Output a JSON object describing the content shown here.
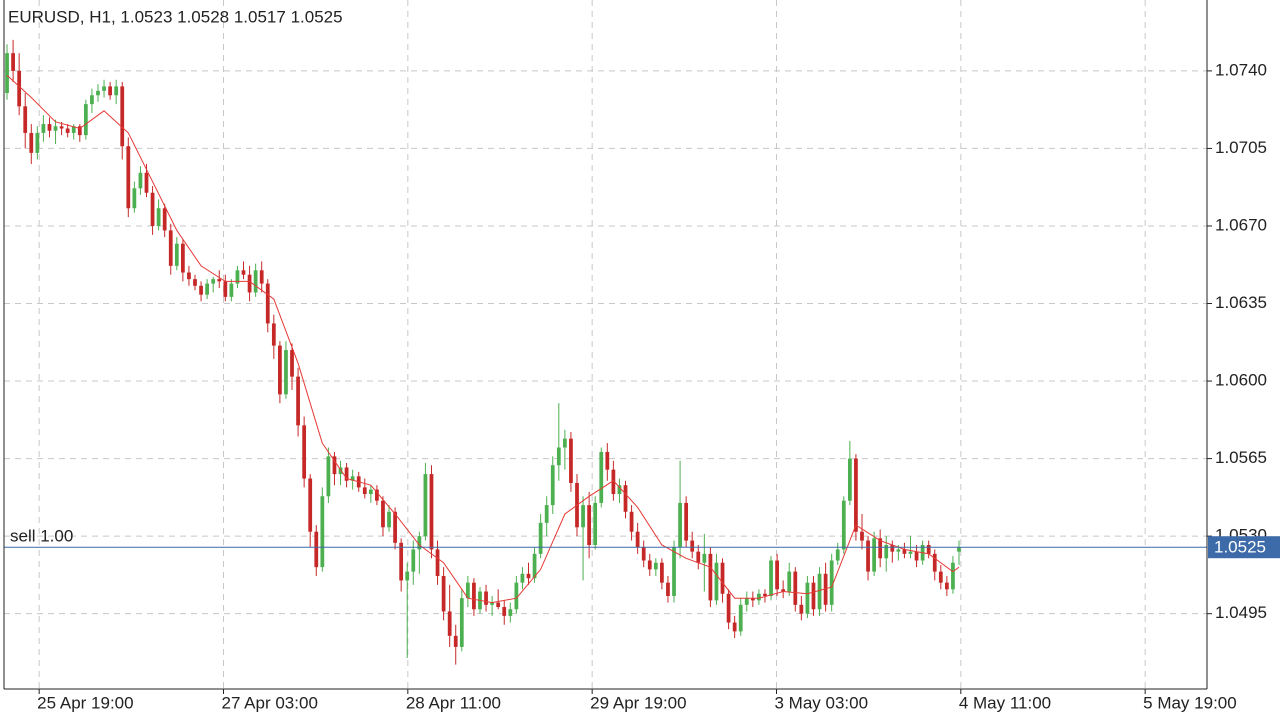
{
  "chart_data": {
    "type": "candlestick",
    "title": "EURUSD, H1, 1.0523 1.0528 1.0517 1.0525",
    "up_color": "#4caf50",
    "down_color": "#c62828",
    "ma_color": "#e53935",
    "price_line_color": "#3d6aa8",
    "ylim": [
      1.0461,
      1.0772
    ],
    "yticks": [
      {
        "value": 1.074,
        "label": "1.0740"
      },
      {
        "value": 1.0705,
        "label": "1.0705"
      },
      {
        "value": 1.067,
        "label": "1.0670"
      },
      {
        "value": 1.0635,
        "label": "1.0635"
      },
      {
        "value": 1.06,
        "label": "1.0600"
      },
      {
        "value": 1.0565,
        "label": "1.0565"
      },
      {
        "value": 1.053,
        "label": "1.0530"
      },
      {
        "value": 1.0495,
        "label": "1.0495"
      }
    ],
    "xlim": [
      -0.5,
      197.9
    ],
    "xticks": [
      {
        "value": 5.3,
        "label": "25 Apr 19:00"
      },
      {
        "value": 35.7,
        "label": "27 Apr 03:00"
      },
      {
        "value": 66.1,
        "label": "28 Apr 11:00"
      },
      {
        "value": 96.5,
        "label": "29 Apr 19:00"
      },
      {
        "value": 126.9,
        "label": "3 May 03:00"
      },
      {
        "value": 157.3,
        "label": "4 May 11:00"
      },
      {
        "value": 187.7,
        "label": "5 May 19:00"
      }
    ],
    "grid": true,
    "price_line": 1.0525,
    "order_label": "sell 1.00",
    "ohlc": [
      [
        1.073,
        1.0752,
        1.0727,
        1.0748
      ],
      [
        1.0748,
        1.0754,
        1.0735,
        1.074
      ],
      [
        1.074,
        1.0748,
        1.072,
        1.0724
      ],
      [
        1.0724,
        1.073,
        1.0705,
        1.0712
      ],
      [
        1.0712,
        1.0716,
        1.0698,
        1.0703
      ],
      [
        1.0703,
        1.0715,
        1.07,
        1.0712
      ],
      [
        1.0712,
        1.072,
        1.0708,
        1.0716
      ],
      [
        1.0716,
        1.0719,
        1.071,
        1.0713
      ],
      [
        1.0713,
        1.0718,
        1.0707,
        1.0715
      ],
      [
        1.0715,
        1.0717,
        1.0711,
        1.0714
      ],
      [
        1.0714,
        1.0716,
        1.071,
        1.0712
      ],
      [
        1.0712,
        1.0716,
        1.0709,
        1.0715
      ],
      [
        1.0715,
        1.0716,
        1.0708,
        1.0711
      ],
      [
        1.0711,
        1.0727,
        1.0709,
        1.0725
      ],
      [
        1.0725,
        1.0732,
        1.0721,
        1.0729
      ],
      [
        1.0729,
        1.0734,
        1.0726,
        1.0731
      ],
      [
        1.0731,
        1.0736,
        1.0728,
        1.0733
      ],
      [
        1.0733,
        1.0735,
        1.0727,
        1.0729
      ],
      [
        1.0729,
        1.0736,
        1.0725,
        1.0733
      ],
      [
        1.0733,
        1.0735,
        1.07,
        1.0706
      ],
      [
        1.0706,
        1.071,
        1.0674,
        1.0678
      ],
      [
        1.0678,
        1.069,
        1.0676,
        1.0687
      ],
      [
        1.0687,
        1.0697,
        1.0684,
        1.0694
      ],
      [
        1.0694,
        1.0698,
        1.0683,
        1.0685
      ],
      [
        1.0685,
        1.0688,
        1.0666,
        1.067
      ],
      [
        1.067,
        1.0682,
        1.0668,
        1.0678
      ],
      [
        1.0678,
        1.068,
        1.0665,
        1.0668
      ],
      [
        1.0668,
        1.0671,
        1.0648,
        1.0652
      ],
      [
        1.0652,
        1.0665,
        1.065,
        1.0662
      ],
      [
        1.0662,
        1.0664,
        1.0645,
        1.0649
      ],
      [
        1.0649,
        1.0652,
        1.0643,
        1.0646
      ],
      [
        1.0646,
        1.0648,
        1.0641,
        1.0643
      ],
      [
        1.0643,
        1.0645,
        1.0636,
        1.0639
      ],
      [
        1.0639,
        1.0646,
        1.0637,
        1.0644
      ],
      [
        1.0644,
        1.0647,
        1.064,
        1.0646
      ],
      [
        1.0646,
        1.065,
        1.0642,
        1.0645
      ],
      [
        1.0645,
        1.0648,
        1.0636,
        1.0638
      ],
      [
        1.0638,
        1.0646,
        1.0636,
        1.0644
      ],
      [
        1.0644,
        1.0652,
        1.0642,
        1.065
      ],
      [
        1.065,
        1.0654,
        1.0646,
        1.0648
      ],
      [
        1.0648,
        1.0652,
        1.0636,
        1.064
      ],
      [
        1.064,
        1.0653,
        1.0638,
        1.065
      ],
      [
        1.065,
        1.0654,
        1.064,
        1.0644
      ],
      [
        1.0644,
        1.0646,
        1.0622,
        1.0626
      ],
      [
        1.0626,
        1.063,
        1.061,
        1.0616
      ],
      [
        1.0616,
        1.0618,
        1.059,
        1.0594
      ],
      [
        1.0594,
        1.0618,
        1.0592,
        1.0614
      ],
      [
        1.0614,
        1.0617,
        1.0596,
        1.0602
      ],
      [
        1.0602,
        1.0606,
        1.0575,
        1.058
      ],
      [
        1.058,
        1.0584,
        1.0552,
        1.0556
      ],
      [
        1.0556,
        1.0558,
        1.0525,
        1.0532
      ],
      [
        1.0532,
        1.0535,
        1.0512,
        1.0516
      ],
      [
        1.0516,
        1.0552,
        1.0514,
        1.0548
      ],
      [
        1.0548,
        1.057,
        1.0545,
        1.0566
      ],
      [
        1.0566,
        1.0568,
        1.0553,
        1.0558
      ],
      [
        1.0558,
        1.0564,
        1.0553,
        1.0561
      ],
      [
        1.0561,
        1.0563,
        1.0552,
        1.0555
      ],
      [
        1.0555,
        1.056,
        1.0551,
        1.0557
      ],
      [
        1.0557,
        1.0559,
        1.055,
        1.0552
      ],
      [
        1.0552,
        1.0556,
        1.0547,
        1.0549
      ],
      [
        1.0549,
        1.0553,
        1.0545,
        1.0551
      ],
      [
        1.0551,
        1.0553,
        1.0544,
        1.0546
      ],
      [
        1.0546,
        1.0548,
        1.053,
        1.0534
      ],
      [
        1.0534,
        1.0544,
        1.0532,
        1.0541
      ],
      [
        1.0541,
        1.0543,
        1.0524,
        1.0527
      ],
      [
        1.0527,
        1.0529,
        1.0505,
        1.051
      ],
      [
        1.051,
        1.0518,
        1.0475,
        1.0514
      ],
      [
        1.0514,
        1.0528,
        1.0508,
        1.0524
      ],
      [
        1.0524,
        1.0532,
        1.0513,
        1.053
      ],
      [
        1.053,
        1.0563,
        1.0528,
        1.0558
      ],
      [
        1.0558,
        1.0562,
        1.052,
        1.0524
      ],
      [
        1.0524,
        1.0528,
        1.0508,
        1.0512
      ],
      [
        1.0512,
        1.0516,
        1.0492,
        1.0496
      ],
      [
        1.0496,
        1.0508,
        1.048,
        1.0485
      ],
      [
        1.0485,
        1.049,
        1.0472,
        1.048
      ],
      [
        1.048,
        1.0506,
        1.0478,
        1.0502
      ],
      [
        1.0502,
        1.0512,
        1.0498,
        1.0509
      ],
      [
        1.0509,
        1.0511,
        1.0494,
        1.0497
      ],
      [
        1.0497,
        1.0507,
        1.0495,
        1.0505
      ],
      [
        1.0505,
        1.0508,
        1.0496,
        1.0499
      ],
      [
        1.0499,
        1.0503,
        1.0494,
        1.05
      ],
      [
        1.05,
        1.0506,
        1.0497,
        1.0498
      ],
      [
        1.0498,
        1.0501,
        1.049,
        1.0494
      ],
      [
        1.0494,
        1.05,
        1.0491,
        1.0497
      ],
      [
        1.0497,
        1.0512,
        1.0495,
        1.0509
      ],
      [
        1.0509,
        1.0516,
        1.0506,
        1.0513
      ],
      [
        1.0513,
        1.0518,
        1.0508,
        1.0511
      ],
      [
        1.0511,
        1.0525,
        1.0509,
        1.0522
      ],
      [
        1.0522,
        1.054,
        1.052,
        1.0536
      ],
      [
        1.0536,
        1.0548,
        1.053,
        1.0544
      ],
      [
        1.0544,
        1.0566,
        1.054,
        1.0562
      ],
      [
        1.0562,
        1.059,
        1.0555,
        1.057
      ],
      [
        1.057,
        1.0578,
        1.056,
        1.0574
      ],
      [
        1.0574,
        1.0577,
        1.055,
        1.0554
      ],
      [
        1.0554,
        1.0558,
        1.053,
        1.0534
      ],
      [
        1.0534,
        1.0548,
        1.051,
        1.0544
      ],
      [
        1.0544,
        1.055,
        1.052,
        1.0526
      ],
      [
        1.0526,
        1.0548,
        1.0524,
        1.0545
      ],
      [
        1.0545,
        1.057,
        1.0543,
        1.0568
      ],
      [
        1.0568,
        1.0572,
        1.0555,
        1.056
      ],
      [
        1.056,
        1.0564,
        1.0546,
        1.0549
      ],
      [
        1.0549,
        1.0556,
        1.0545,
        1.0553
      ],
      [
        1.0553,
        1.0555,
        1.0538,
        1.0541
      ],
      [
        1.0541,
        1.0544,
        1.0528,
        1.0532
      ],
      [
        1.0532,
        1.0536,
        1.0522,
        1.0525
      ],
      [
        1.0525,
        1.0528,
        1.0516,
        1.0519
      ],
      [
        1.0519,
        1.0522,
        1.0512,
        1.0515
      ],
      [
        1.0515,
        1.052,
        1.0512,
        1.0518
      ],
      [
        1.0518,
        1.052,
        1.0506,
        1.0509
      ],
      [
        1.0509,
        1.0512,
        1.05,
        1.0503
      ],
      [
        1.0503,
        1.0528,
        1.05,
        1.0525
      ],
      [
        1.0525,
        1.0564,
        1.052,
        1.0545
      ],
      [
        1.0545,
        1.0548,
        1.0525,
        1.0528
      ],
      [
        1.0528,
        1.0532,
        1.052,
        1.0523
      ],
      [
        1.0523,
        1.0526,
        1.0515,
        1.0518
      ],
      [
        1.0518,
        1.0531,
        1.0505,
        1.0522
      ],
      [
        1.0522,
        1.0525,
        1.0498,
        1.0501
      ],
      [
        1.0501,
        1.0522,
        1.0499,
        1.0518
      ],
      [
        1.0518,
        1.052,
        1.05,
        1.0504
      ],
      [
        1.0504,
        1.0506,
        1.0488,
        1.0491
      ],
      [
        1.0491,
        1.0494,
        1.0484,
        1.0487
      ],
      [
        1.0487,
        1.0502,
        1.0485,
        1.0499
      ],
      [
        1.0499,
        1.0505,
        1.0496,
        1.0502
      ],
      [
        1.0502,
        1.0505,
        1.0498,
        1.0501
      ],
      [
        1.0501,
        1.0506,
        1.0499,
        1.0504
      ],
      [
        1.0504,
        1.0506,
        1.05,
        1.0503
      ],
      [
        1.0503,
        1.0521,
        1.0501,
        1.0519
      ],
      [
        1.0519,
        1.0522,
        1.0503,
        1.0506
      ],
      [
        1.0506,
        1.051,
        1.0502,
        1.0505
      ],
      [
        1.0505,
        1.0518,
        1.0503,
        1.0514
      ],
      [
        1.0514,
        1.0516,
        1.0496,
        1.0499
      ],
      [
        1.0499,
        1.0503,
        1.0492,
        1.0495
      ],
      [
        1.0495,
        1.0512,
        1.0493,
        1.0509
      ],
      [
        1.0509,
        1.0512,
        1.0494,
        1.0497
      ],
      [
        1.0497,
        1.0516,
        1.0494,
        1.0513
      ],
      [
        1.0513,
        1.0518,
        1.0496,
        1.0499
      ],
      [
        1.0499,
        1.0522,
        1.0496,
        1.0519
      ],
      [
        1.0519,
        1.0527,
        1.0517,
        1.0524
      ],
      [
        1.0524,
        1.0548,
        1.0522,
        1.0546
      ],
      [
        1.0546,
        1.0573,
        1.0544,
        1.0565
      ],
      [
        1.0565,
        1.0567,
        1.0528,
        1.0532
      ],
      [
        1.0532,
        1.054,
        1.0524,
        1.0528
      ],
      [
        1.0528,
        1.053,
        1.051,
        1.0514
      ],
      [
        1.0514,
        1.0532,
        1.0512,
        1.0529
      ],
      [
        1.0529,
        1.0533,
        1.0516,
        1.052
      ],
      [
        1.052,
        1.053,
        1.0514,
        1.0526
      ],
      [
        1.0526,
        1.0528,
        1.0518,
        1.0523
      ],
      [
        1.0523,
        1.0526,
        1.0519,
        1.0524
      ],
      [
        1.0524,
        1.0527,
        1.052,
        1.0522
      ],
      [
        1.0522,
        1.053,
        1.052,
        1.0523
      ],
      [
        1.0523,
        1.0526,
        1.0516,
        1.0519
      ],
      [
        1.0519,
        1.0528,
        1.0517,
        1.0526
      ],
      [
        1.0526,
        1.0528,
        1.052,
        1.0522
      ],
      [
        1.0522,
        1.0524,
        1.051,
        1.0514
      ],
      [
        1.0514,
        1.0517,
        1.0506,
        1.0509
      ],
      [
        1.0509,
        1.0512,
        1.0503,
        1.0506
      ],
      [
        1.0506,
        1.0521,
        1.0504,
        1.0518
      ],
      [
        1.0523,
        1.0528,
        1.0517,
        1.0525
      ]
    ],
    "ma": {
      "x": [
        0,
        4,
        8,
        12,
        16,
        20,
        24,
        28,
        32,
        36,
        40,
        44,
        48,
        52,
        56,
        60,
        64,
        68,
        72,
        76,
        80,
        84,
        88,
        92,
        96,
        100,
        104,
        108,
        112,
        116,
        120,
        124,
        128,
        132,
        136,
        140,
        144,
        148,
        152,
        156,
        157
      ],
      "values": [
        1.0738,
        1.0728,
        1.0717,
        1.0714,
        1.0722,
        1.0712,
        1.069,
        1.0668,
        1.0652,
        1.0645,
        1.0645,
        1.0637,
        1.0608,
        1.0572,
        1.0556,
        1.0553,
        1.054,
        1.0526,
        1.0518,
        1.0502,
        1.05,
        1.0502,
        1.0515,
        1.054,
        1.0548,
        1.0555,
        1.0543,
        1.0526,
        1.052,
        1.0516,
        1.0502,
        1.0502,
        1.0505,
        1.0504,
        1.0507,
        1.0535,
        1.0528,
        1.0524,
        1.0522,
        1.0514,
        1.0516
      ]
    }
  }
}
